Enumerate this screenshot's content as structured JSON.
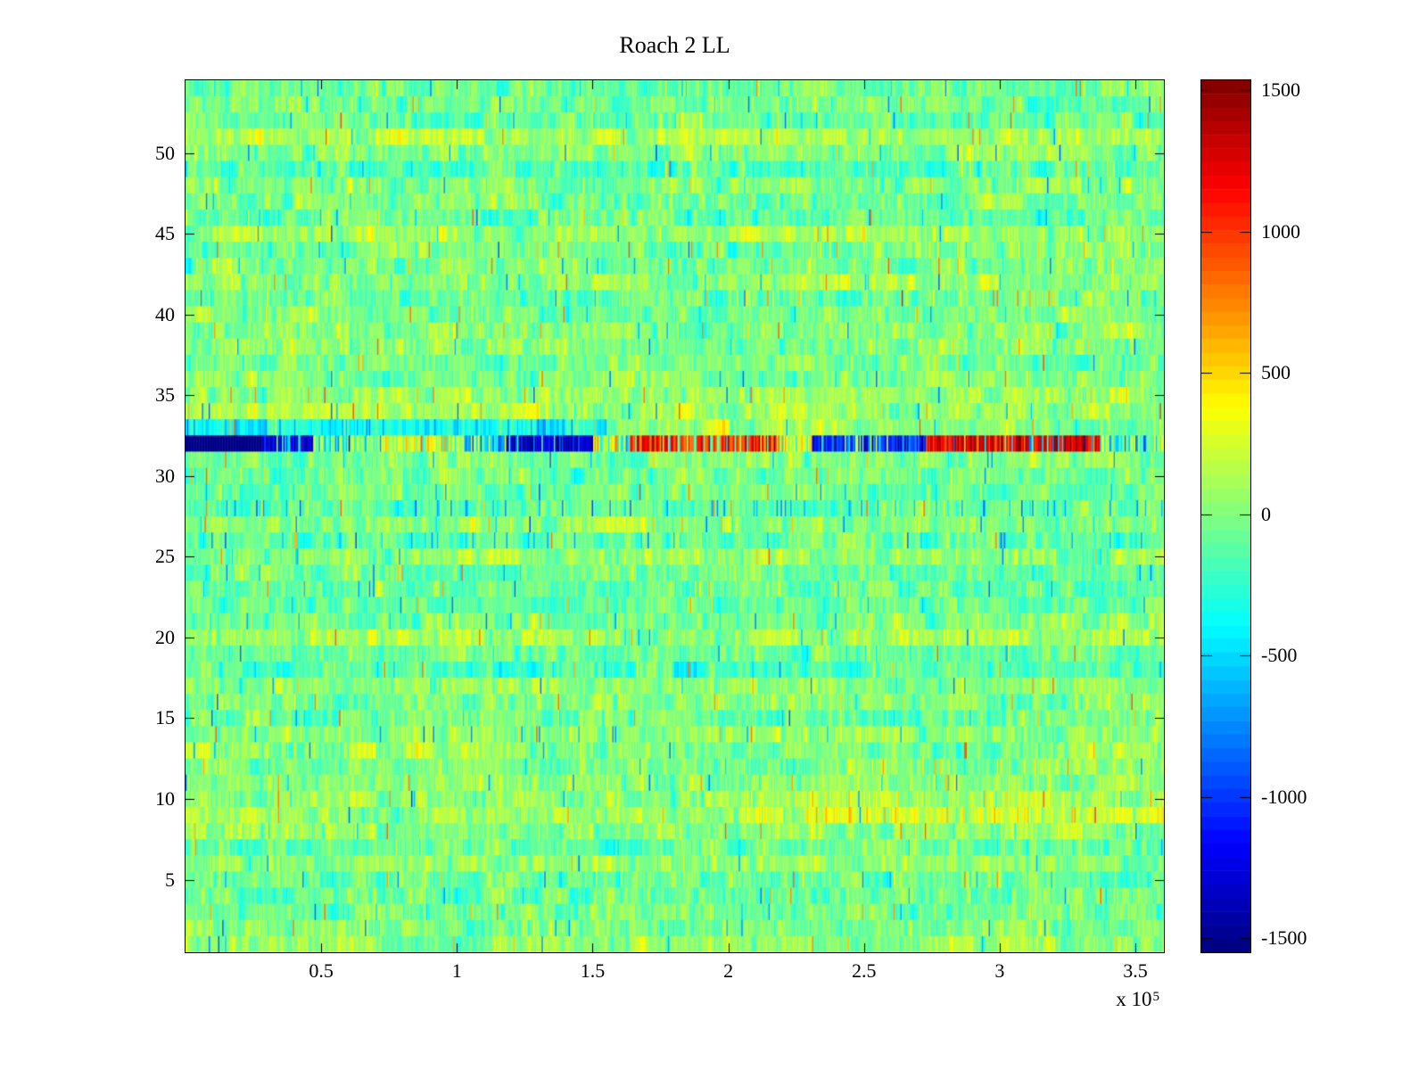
{
  "title": "Roach 2 LL",
  "x_exponent": {
    "prefix": "x 10",
    "exp": "5"
  },
  "colors": {
    "background": "#ffffff",
    "axis": "#000000",
    "anomaly_deep_blue": "#00008f",
    "anomaly_deep_red": "#8f0000"
  },
  "chart_data": {
    "type": "heatmap",
    "title": "Roach 2 LL",
    "colormap": "jet",
    "levels": 64,
    "grid": {
      "rows": 54,
      "cols": 720
    },
    "x_axis": {
      "min": 0,
      "max": 360500,
      "unit_scale": 100000,
      "ticks": [
        {
          "value": 50000,
          "label": "0.5"
        },
        {
          "value": 100000,
          "label": "1"
        },
        {
          "value": 150000,
          "label": "1.5"
        },
        {
          "value": 200000,
          "label": "2"
        },
        {
          "value": 250000,
          "label": "2.5"
        },
        {
          "value": 300000,
          "label": "3"
        },
        {
          "value": 350000,
          "label": "3.5"
        }
      ]
    },
    "y_axis": {
      "min": 0.5,
      "max": 54.5,
      "rows": 54,
      "ticks": [
        {
          "value": 5,
          "label": "5"
        },
        {
          "value": 10,
          "label": "10"
        },
        {
          "value": 15,
          "label": "15"
        },
        {
          "value": 20,
          "label": "20"
        },
        {
          "value": 25,
          "label": "25"
        },
        {
          "value": 30,
          "label": "30"
        },
        {
          "value": 35,
          "label": "35"
        },
        {
          "value": 40,
          "label": "40"
        },
        {
          "value": 45,
          "label": "45"
        },
        {
          "value": 50,
          "label": "50"
        }
      ]
    },
    "colorbar": {
      "min": -1550,
      "max": 1535,
      "ticks": [
        {
          "value": 1500,
          "label": "1500"
        },
        {
          "value": 1000,
          "label": "1000"
        },
        {
          "value": 500,
          "label": "500"
        },
        {
          "value": 0,
          "label": "0"
        },
        {
          "value": -500,
          "label": "-500"
        },
        {
          "value": -1000,
          "label": "-1000"
        },
        {
          "value": -1500,
          "label": "-1500"
        }
      ]
    },
    "noise": {
      "seed": 1337,
      "sigma": 112,
      "row_bias_sigma": 68,
      "row_bias_clamp": 175,
      "block_cols": 20,
      "block_sigma": 58,
      "ar": 0.55,
      "outlier_prob": 0.02,
      "outlier_base": 350,
      "outlier_span": 500,
      "cool_top_rows_from": 45,
      "cool_top_rows_bias": -35
    },
    "row_effects": [
      {
        "row": 33,
        "from": 0,
        "to": 155000,
        "bias": -260,
        "fleck_prob": 0.06,
        "fleck_value": -700
      },
      {
        "row": 33,
        "from": 155000,
        "to": 310000,
        "bias": 110
      },
      {
        "row": 28,
        "from": 0,
        "to": 360500,
        "bias": -190,
        "fleck_prob": 0.07,
        "fleck_value": -650
      },
      {
        "row": 26,
        "from": 0,
        "to": 360500,
        "bias": -150,
        "fleck_prob": 0.05,
        "fleck_value": -600
      },
      {
        "row": 30,
        "from": 0,
        "to": 360500,
        "bias": -110
      },
      {
        "row": 9,
        "from": 225000,
        "to": 360500,
        "bias": 150,
        "fleck_prob": 0.16,
        "fleck_value": 450
      },
      {
        "row": 10,
        "from": 225000,
        "to": 360500,
        "bias": 70,
        "fleck_prob": 0.09,
        "fleck_value": 400
      },
      {
        "row": 12,
        "from": 240000,
        "to": 360500,
        "bias": 60,
        "fleck_prob": 0.08,
        "fleck_value": 380
      },
      {
        "row": 13,
        "from": 0,
        "to": 120000,
        "bias": 80
      },
      {
        "row": 41,
        "from": 200000,
        "to": 360500,
        "bias": 40,
        "fleck_prob": 0.07,
        "fleck_value": 400
      },
      {
        "row": 44,
        "from": 210000,
        "to": 360500,
        "bias": 30,
        "fleck_prob": 0.05,
        "fleck_value": 380
      },
      {
        "row": 49,
        "from": 240000,
        "to": 360500,
        "bias": 0,
        "fleck_prob": 0.05,
        "fleck_value": 380
      }
    ],
    "anomaly_row": {
      "row": 32,
      "segments": [
        {
          "from": 0,
          "to": 28000,
          "value": -1540,
          "spread": 20,
          "density": 1.0,
          "alt": -1540,
          "alt_spread": 20
        },
        {
          "from": 28000,
          "to": 47000,
          "value": -1280,
          "spread": 200,
          "density": 0.85,
          "alt": -350,
          "alt_spread": 200
        },
        {
          "from": 47000,
          "to": 72000,
          "value": -380,
          "spread": 280,
          "density": 0.55,
          "alt": 80,
          "alt_spread": 160
        },
        {
          "from": 72000,
          "to": 102000,
          "value": 240,
          "spread": 240,
          "density": 0.75,
          "alt": -150,
          "alt_spread": 200
        },
        {
          "from": 102000,
          "to": 118000,
          "value": -720,
          "spread": 260,
          "density": 0.8,
          "alt": 100,
          "alt_spread": 180
        },
        {
          "from": 118000,
          "to": 150000,
          "value": -1330,
          "spread": 220,
          "density": 0.92,
          "alt": -250,
          "alt_spread": 220
        },
        {
          "from": 150000,
          "to": 163000,
          "value": 260,
          "spread": 260,
          "density": 0.65,
          "alt": -350,
          "alt_spread": 260
        },
        {
          "from": 163000,
          "to": 218000,
          "value": 1060,
          "spread": 260,
          "density": 0.85,
          "alt": -150,
          "alt_spread": 300
        },
        {
          "from": 218000,
          "to": 231000,
          "value": 400,
          "spread": 250,
          "density": 0.7,
          "alt": -100,
          "alt_spread": 250
        },
        {
          "from": 231000,
          "to": 273000,
          "value": -1020,
          "spread": 300,
          "density": 0.85,
          "alt": 300,
          "alt_spread": 260
        },
        {
          "from": 273000,
          "to": 337000,
          "value": 1260,
          "spread": 230,
          "density": 0.9,
          "alt": -450,
          "alt_spread": 350
        },
        {
          "from": 337000,
          "to": 360500,
          "value": -430,
          "spread": 300,
          "density": 0.7,
          "alt": 250,
          "alt_spread": 220
        }
      ]
    },
    "layout_hints": {
      "grid": false,
      "legend": "colorbar-right",
      "tick_dir": "in",
      "box": true
    }
  }
}
